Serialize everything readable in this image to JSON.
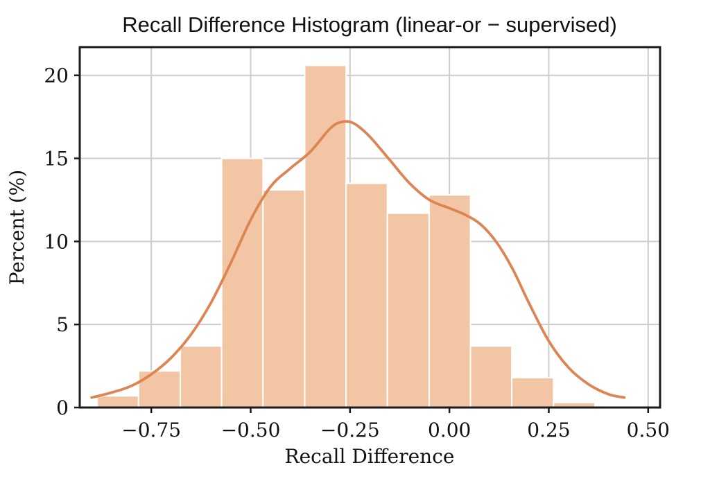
{
  "chart_data": {
    "type": "bar",
    "variant": "histogram-with-kde",
    "title": "Recall Difference Histogram (linear-or − supervised)",
    "xlabel": "Recall Difference",
    "ylabel": "Percent (%)",
    "xlim": [
      -0.93,
      0.53
    ],
    "ylim": [
      0,
      21.7
    ],
    "grid": true,
    "legend": "none",
    "x_ticks": [
      {
        "v": -0.75,
        "label": "−0.75"
      },
      {
        "v": -0.5,
        "label": "−0.50"
      },
      {
        "v": -0.25,
        "label": "−0.25"
      },
      {
        "v": 0.0,
        "label": "0.00"
      },
      {
        "v": 0.25,
        "label": "0.25"
      },
      {
        "v": 0.5,
        "label": "0.50"
      }
    ],
    "y_ticks": [
      {
        "v": 0,
        "label": "0"
      },
      {
        "v": 5,
        "label": "5"
      },
      {
        "v": 10,
        "label": "10"
      },
      {
        "v": 15,
        "label": "15"
      },
      {
        "v": 20,
        "label": "20"
      }
    ],
    "bins": {
      "edges": [
        -0.886,
        -0.782,
        -0.677,
        -0.573,
        -0.469,
        -0.364,
        -0.26,
        -0.156,
        -0.051,
        0.053,
        0.157,
        0.262,
        0.366
      ],
      "percents": [
        0.7,
        2.2,
        3.7,
        15.0,
        13.1,
        20.6,
        13.5,
        11.7,
        12.8,
        3.7,
        1.8,
        0.3
      ]
    },
    "kde": {
      "x": [
        -0.9,
        -0.85,
        -0.8,
        -0.75,
        -0.7,
        -0.65,
        -0.6,
        -0.55,
        -0.5,
        -0.45,
        -0.4,
        -0.35,
        -0.3,
        -0.27,
        -0.24,
        -0.2,
        -0.15,
        -0.1,
        -0.05,
        0.0,
        0.04,
        0.08,
        0.12,
        0.16,
        0.2,
        0.25,
        0.3,
        0.35,
        0.4,
        0.44
      ],
      "y": [
        0.6,
        0.9,
        1.3,
        2.0,
        3.0,
        4.4,
        6.3,
        8.7,
        11.3,
        13.3,
        14.4,
        15.4,
        16.8,
        17.2,
        17.1,
        16.3,
        14.9,
        13.5,
        12.5,
        12.0,
        11.6,
        11.0,
        9.9,
        8.3,
        6.3,
        4.0,
        2.4,
        1.4,
        0.8,
        0.6
      ]
    },
    "colors": {
      "bar_fill": "#f2c6a4",
      "bar_edge": "#ffffff",
      "kde_line": "#dd8452",
      "grid_line": "#cccccc",
      "spine": "#1a1a1a",
      "text": "#111111",
      "background": "#ffffff"
    }
  }
}
